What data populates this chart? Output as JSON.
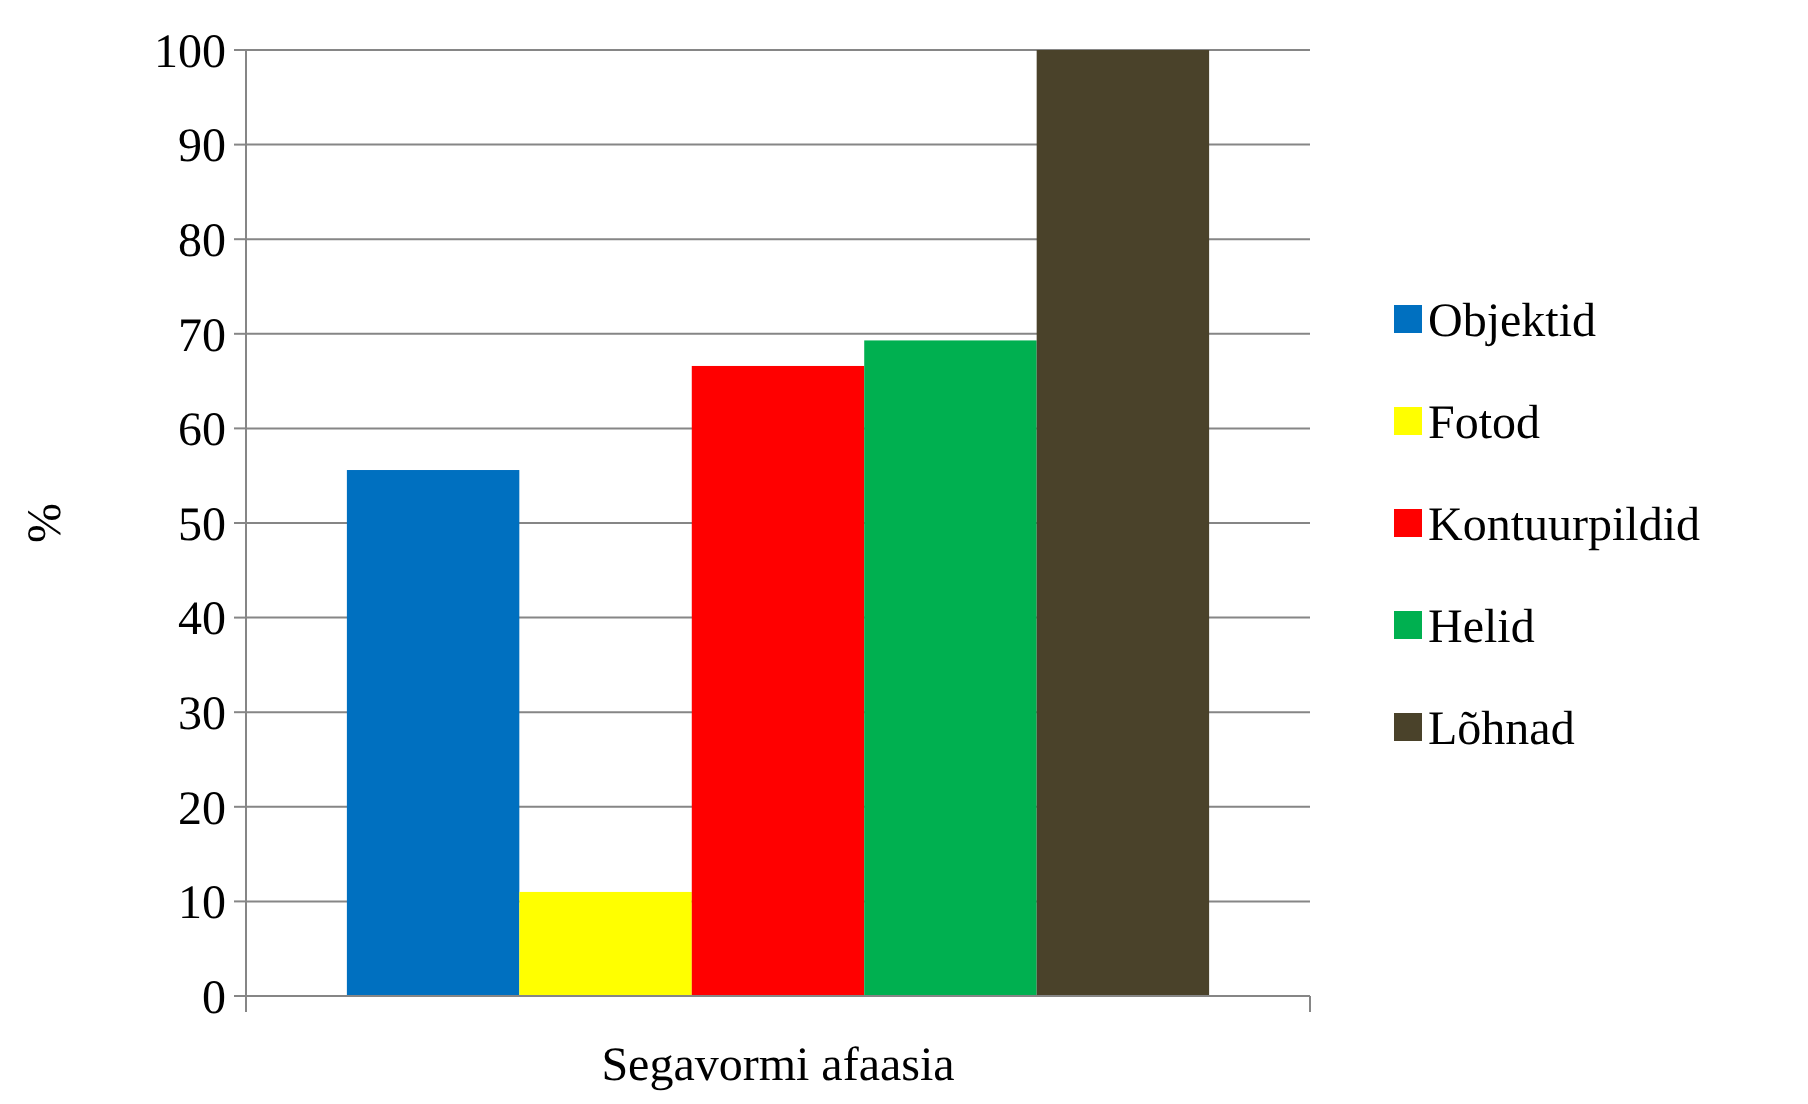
{
  "chart_data": {
    "type": "bar",
    "ylabel": "%",
    "categories": [
      "Segavormi afaasia"
    ],
    "series": [
      {
        "name": "Objektid",
        "color": "#0070c0",
        "values": [
          55.6
        ]
      },
      {
        "name": "Fotod",
        "color": "#ffff00",
        "values": [
          11
        ]
      },
      {
        "name": "Kontuurpildid",
        "color": "#ff0000",
        "values": [
          66.6
        ]
      },
      {
        "name": "Helid",
        "color": "#00b050",
        "values": [
          69.3
        ]
      },
      {
        "name": "Lõhnad",
        "color": "#4a422a",
        "values": [
          100
        ]
      }
    ],
    "ylim": [
      0,
      100
    ],
    "yticks": [
      0,
      10,
      20,
      30,
      40,
      50,
      60,
      70,
      80,
      90,
      100
    ],
    "grid": "y",
    "legend": "right"
  }
}
